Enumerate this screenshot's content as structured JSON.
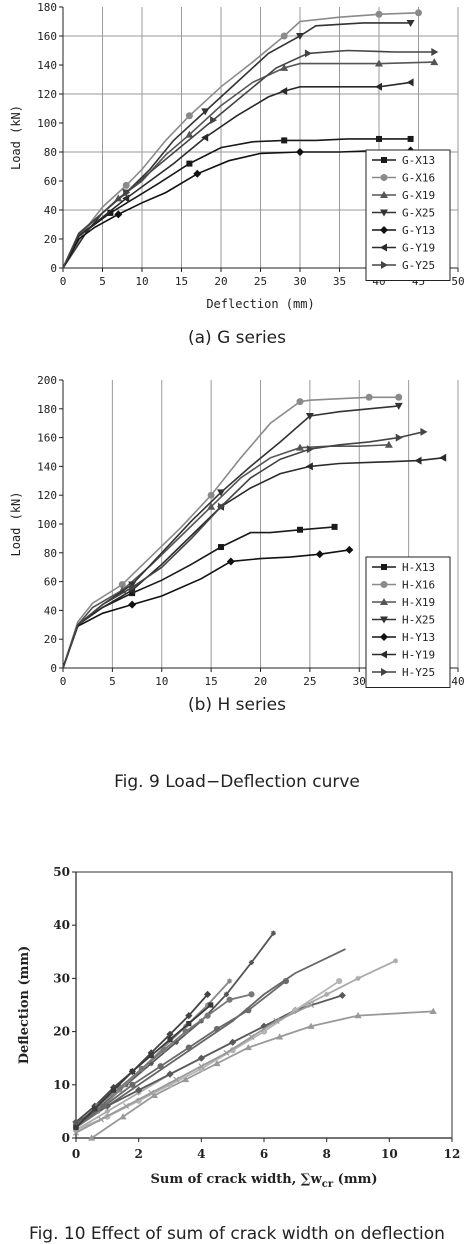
{
  "captions": {
    "fig9a": "(a) G series",
    "fig9b": "(b) H series",
    "fig9": "Fig. 9 Load−Deflection curve",
    "fig10": "Fig. 10 Effect of sum of crack width on deflection"
  },
  "chart_data": [
    {
      "type": "line",
      "xlabel": "Deflection (mm)",
      "ylabel": "Load (kN)",
      "xlim": [
        0,
        50
      ],
      "ylim": [
        0,
        180
      ],
      "xticks": [
        "0",
        "5",
        "10",
        "15",
        "20",
        "25",
        "30",
        "35",
        "40",
        "45",
        "50"
      ],
      "yticks": [
        "0",
        "20",
        "40",
        "60",
        "80",
        "100",
        "120",
        "140",
        "160",
        "180"
      ],
      "grid": "vertical",
      "legend_position": "right",
      "series": [
        {
          "name": "G-X13",
          "marker": "square",
          "color": "#1a1a1a",
          "x": [
            0,
            2,
            4,
            6,
            9,
            12,
            16,
            20,
            24,
            28,
            32,
            36,
            40,
            44
          ],
          "y": [
            0,
            22,
            30,
            38,
            48,
            58,
            72,
            83,
            87,
            88,
            88,
            89,
            89,
            89
          ]
        },
        {
          "name": "G-X16",
          "marker": "circle",
          "color": "#8a8a8a",
          "x": [
            0,
            3,
            5,
            8,
            10,
            13,
            16,
            20,
            24,
            28,
            30,
            35,
            40,
            45
          ],
          "y": [
            0,
            28,
            42,
            57,
            68,
            88,
            105,
            125,
            142,
            160,
            170,
            173,
            175,
            176
          ]
        },
        {
          "name": "G-X19",
          "marker": "triangle-up",
          "color": "#555555",
          "x": [
            0,
            2,
            4,
            7,
            10,
            13,
            16,
            20,
            24,
            28,
            30,
            35,
            40,
            47
          ],
          "y": [
            0,
            23,
            33,
            48,
            60,
            78,
            92,
            112,
            128,
            138,
            141,
            141,
            141,
            142
          ]
        },
        {
          "name": "G-X25",
          "marker": "triangle-down",
          "color": "#333333",
          "x": [
            0,
            3,
            5,
            8,
            11,
            14,
            18,
            22,
            26,
            30,
            32,
            38,
            44
          ],
          "y": [
            0,
            25,
            38,
            52,
            68,
            88,
            108,
            128,
            148,
            160,
            167,
            169,
            169
          ]
        },
        {
          "name": "G-Y13",
          "marker": "diamond",
          "color": "#111111",
          "x": [
            0,
            2,
            4,
            7,
            10,
            13,
            17,
            21,
            25,
            30,
            35,
            40,
            44
          ],
          "y": [
            0,
            20,
            28,
            37,
            45,
            52,
            65,
            74,
            79,
            80,
            80,
            81,
            81
          ]
        },
        {
          "name": "G-Y19",
          "marker": "triangle-left",
          "color": "#2a2a2a",
          "x": [
            0,
            2,
            5,
            8,
            11,
            14,
            18,
            22,
            26,
            28,
            30,
            35,
            40,
            44
          ],
          "y": [
            0,
            22,
            35,
            48,
            60,
            72,
            90,
            105,
            118,
            122,
            125,
            125,
            125,
            128
          ]
        },
        {
          "name": "G-Y25",
          "marker": "triangle-right",
          "color": "#444444",
          "x": [
            0,
            2,
            5,
            8,
            11,
            15,
            19,
            23,
            27,
            31,
            36,
            42,
            47
          ],
          "y": [
            0,
            24,
            38,
            52,
            66,
            84,
            102,
            120,
            138,
            148,
            150,
            149,
            149
          ]
        }
      ]
    },
    {
      "type": "line",
      "xlabel": "Deflection (mm)",
      "ylabel": "Load (kN)",
      "xlim": [
        0,
        40
      ],
      "ylim": [
        0,
        200
      ],
      "xticks": [
        "0",
        "5",
        "10",
        "15",
        "20",
        "25",
        "30",
        "35",
        "40"
      ],
      "yticks": [
        "0",
        "20",
        "40",
        "60",
        "80",
        "100",
        "120",
        "140",
        "160",
        "180",
        "200"
      ],
      "grid": "vertical",
      "legend_position": "right",
      "series": [
        {
          "name": "H-X13",
          "marker": "square",
          "color": "#1a1a1a",
          "x": [
            0,
            1.5,
            4,
            7,
            10,
            13,
            16,
            19,
            21,
            24,
            27.5
          ],
          "y": [
            0,
            30,
            42,
            52,
            61,
            72,
            84,
            94,
            94,
            96,
            98
          ]
        },
        {
          "name": "H-X16",
          "marker": "circle",
          "color": "#8a8a8a",
          "x": [
            0,
            1.5,
            3,
            6,
            9,
            12,
            15,
            18,
            21,
            24,
            25,
            28,
            31,
            34
          ],
          "y": [
            0,
            32,
            45,
            58,
            78,
            98,
            120,
            146,
            170,
            185,
            186,
            187,
            188,
            188
          ]
        },
        {
          "name": "H-X19",
          "marker": "triangle-up",
          "color": "#555555",
          "x": [
            0,
            1.5,
            3,
            6,
            9,
            12,
            15,
            18,
            21,
            24,
            27,
            30,
            33
          ],
          "y": [
            0,
            30,
            42,
            54,
            72,
            92,
            112,
            132,
            146,
            153,
            154,
            154,
            155
          ]
        },
        {
          "name": "H-X25",
          "marker": "triangle-down",
          "color": "#333333",
          "x": [
            0,
            1.5,
            4,
            7,
            10,
            13,
            16,
            19,
            22,
            25,
            28,
            31,
            34
          ],
          "y": [
            0,
            30,
            44,
            58,
            80,
            102,
            122,
            140,
            157,
            175,
            178,
            180,
            182
          ]
        },
        {
          "name": "H-Y13",
          "marker": "diamond",
          "color": "#111111",
          "x": [
            0,
            1.5,
            4,
            7,
            10,
            14,
            17,
            20,
            23,
            26,
            29
          ],
          "y": [
            0,
            29,
            38,
            44,
            50,
            62,
            74,
            76,
            77,
            79,
            82
          ]
        },
        {
          "name": "H-Y19",
          "marker": "triangle-left",
          "color": "#2a2a2a",
          "x": [
            0,
            1.5,
            4,
            7,
            10,
            13,
            16,
            19,
            22,
            25,
            28,
            32,
            36,
            38.5
          ],
          "y": [
            0,
            30,
            42,
            54,
            72,
            92,
            112,
            125,
            135,
            140,
            142,
            143,
            144,
            146
          ]
        },
        {
          "name": "H-Y25",
          "marker": "triangle-right",
          "color": "#444444",
          "x": [
            0,
            1.5,
            4,
            7,
            10,
            13,
            16,
            19,
            22,
            25,
            28,
            31,
            34,
            36.5
          ],
          "y": [
            0,
            30,
            44,
            56,
            70,
            90,
            112,
            132,
            145,
            152,
            155,
            157,
            160,
            164
          ]
        }
      ]
    },
    {
      "type": "line",
      "xlabel": "Sum of crack width, ∑w_cr (mm)",
      "ylabel": "Deflection (mm)",
      "xlim": [
        0,
        12
      ],
      "ylim": [
        0,
        50
      ],
      "xticks": [
        "0",
        "2",
        "4",
        "6",
        "8",
        "10",
        "12"
      ],
      "yticks": [
        "0",
        "10",
        "20",
        "30",
        "40",
        "50"
      ],
      "grid": "none",
      "series": [
        {
          "color": "#555555",
          "marker": "asterisk",
          "x": [
            0,
            0.8,
            1.6,
            2.4,
            3.2,
            4.0,
            4.8,
            5.6,
            6.3
          ],
          "y": [
            2,
            6,
            10,
            14,
            18,
            22,
            27,
            33,
            38.5
          ]
        },
        {
          "color": "#666666",
          "marker": "none",
          "x": [
            0,
            1,
            2,
            3,
            4,
            5,
            6,
            7,
            8.6
          ],
          "y": [
            2,
            6,
            10,
            14,
            18,
            22,
            27,
            31,
            35.5
          ]
        },
        {
          "color": "#aaaaaa",
          "marker": "asterisk",
          "x": [
            0,
            1,
            2,
            3,
            4,
            5,
            6,
            7,
            8,
            9,
            10.2
          ],
          "y": [
            1.5,
            5,
            8.5,
            12,
            15,
            18,
            21,
            24,
            27,
            30,
            33.3
          ]
        },
        {
          "color": "#888888",
          "marker": "asterisk",
          "x": [
            0,
            0.7,
            1.4,
            2.1,
            2.8,
            3.5,
            4.2,
            4.9
          ],
          "y": [
            2,
            5,
            9,
            13,
            17,
            21,
            25,
            29.5
          ]
        },
        {
          "color": "#999999",
          "marker": "triangle-up",
          "x": [
            0.5,
            1.5,
            2.5,
            3.5,
            4.5,
            5.5,
            6.5,
            7.5,
            9,
            11.4
          ],
          "y": [
            0,
            4,
            8,
            11,
            14,
            17,
            19,
            21,
            23,
            23.8
          ]
        },
        {
          "color": "#444444",
          "marker": "diamond",
          "x": [
            0,
            0.6,
            1.2,
            1.8,
            2.4,
            3.0,
            3.6,
            4.2
          ],
          "y": [
            3,
            6,
            9.5,
            12.5,
            16,
            19.5,
            23,
            27
          ]
        },
        {
          "color": "#777777",
          "marker": "circle",
          "x": [
            0,
            0.7,
            1.4,
            2.1,
            2.8,
            3.5,
            4.2,
            4.9,
            5.6
          ],
          "y": [
            2.5,
            6,
            9.5,
            13,
            16.5,
            20,
            23,
            26,
            27
          ]
        },
        {
          "color": "#5a5a5a",
          "marker": "diamond",
          "x": [
            0,
            1,
            2,
            3,
            4,
            5,
            6,
            7,
            8.5
          ],
          "y": [
            3,
            6,
            9,
            12,
            15,
            18,
            21,
            24,
            26.8
          ]
        },
        {
          "color": "#b5b5b5",
          "marker": "circle",
          "x": [
            0,
            1,
            2,
            3,
            4,
            5,
            6,
            7,
            8.4
          ],
          "y": [
            1.5,
            4,
            7,
            10,
            13,
            16.5,
            20,
            24,
            29.5
          ]
        },
        {
          "color": "#6a6a6a",
          "marker": "circle",
          "x": [
            0,
            0.9,
            1.8,
            2.7,
            3.6,
            4.5,
            5.5,
            6.7
          ],
          "y": [
            2,
            6,
            10,
            13.5,
            17,
            20.5,
            24,
            29.5
          ]
        },
        {
          "color": "#9a9a9a",
          "marker": "cross",
          "x": [
            0,
            0.8,
            1.6,
            2.4,
            3.2,
            4.0,
            4.8,
            5.6,
            6.4,
            7.5
          ],
          "y": [
            1,
            3.5,
            6,
            8.5,
            11,
            13.5,
            16,
            19,
            22,
            25
          ]
        },
        {
          "color": "#3a3a3a",
          "marker": "square",
          "x": [
            0,
            0.6,
            1.2,
            1.8,
            2.4,
            3.0,
            3.6,
            4.3
          ],
          "y": [
            2,
            5.5,
            9,
            12.5,
            15.5,
            18.5,
            21.5,
            25
          ]
        }
      ]
    }
  ]
}
